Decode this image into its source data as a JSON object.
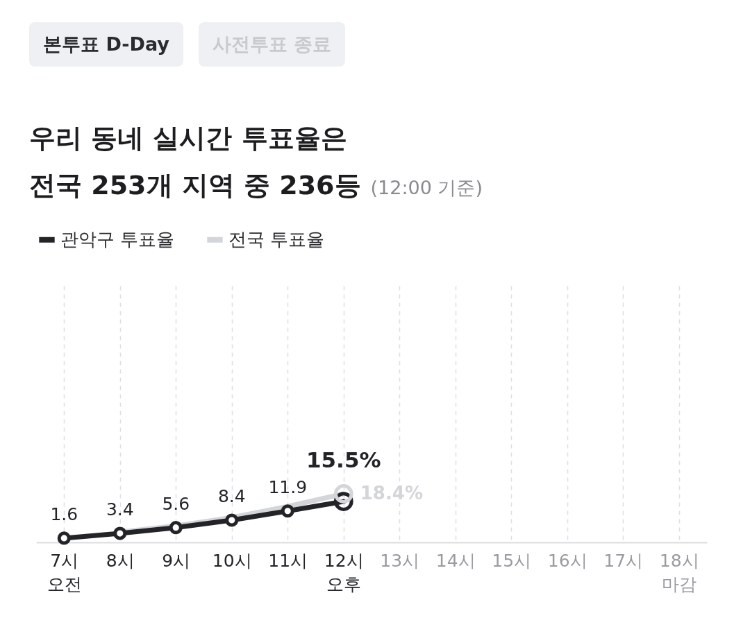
{
  "chart_data": {
    "type": "line",
    "title": "우리 동네 실시간 투표율은\n전국 253개 지역 중 236등",
    "subtitle": "(12:00 기준)",
    "annotations": [
      "본투표 D-Day",
      "사전투표 종료"
    ],
    "categories": [
      "7시\n오전",
      "8시",
      "9시",
      "10시",
      "11시",
      "12시\n오후",
      "13시",
      "14시",
      "15시",
      "16시",
      "17시",
      "18시\n마감"
    ],
    "grid": "x",
    "legend": "top left",
    "line_style": "solid",
    "series": [
      {
        "name": "관악구 투표율",
        "color": "#222428",
        "marker": "circle",
        "values": [
          1.6,
          3.4,
          5.6,
          8.4,
          11.9,
          15.5,
          null,
          null,
          null,
          null,
          null,
          null
        ],
        "value_labels": [
          "1.6",
          "3.4",
          "5.6",
          "8.4",
          "11.9",
          "15.5%",
          null,
          null,
          null,
          null,
          null,
          null
        ]
      },
      {
        "name": "전국 투표율",
        "color": "#d3d5d9",
        "values": [
          null,
          3.9,
          6.3,
          9.4,
          13.6,
          18.4,
          null,
          null,
          null,
          null,
          null,
          null
        ],
        "value_labels": [
          null,
          null,
          null,
          null,
          null,
          "18.4%",
          null,
          null,
          null,
          null,
          null,
          null
        ]
      }
    ]
  }
}
